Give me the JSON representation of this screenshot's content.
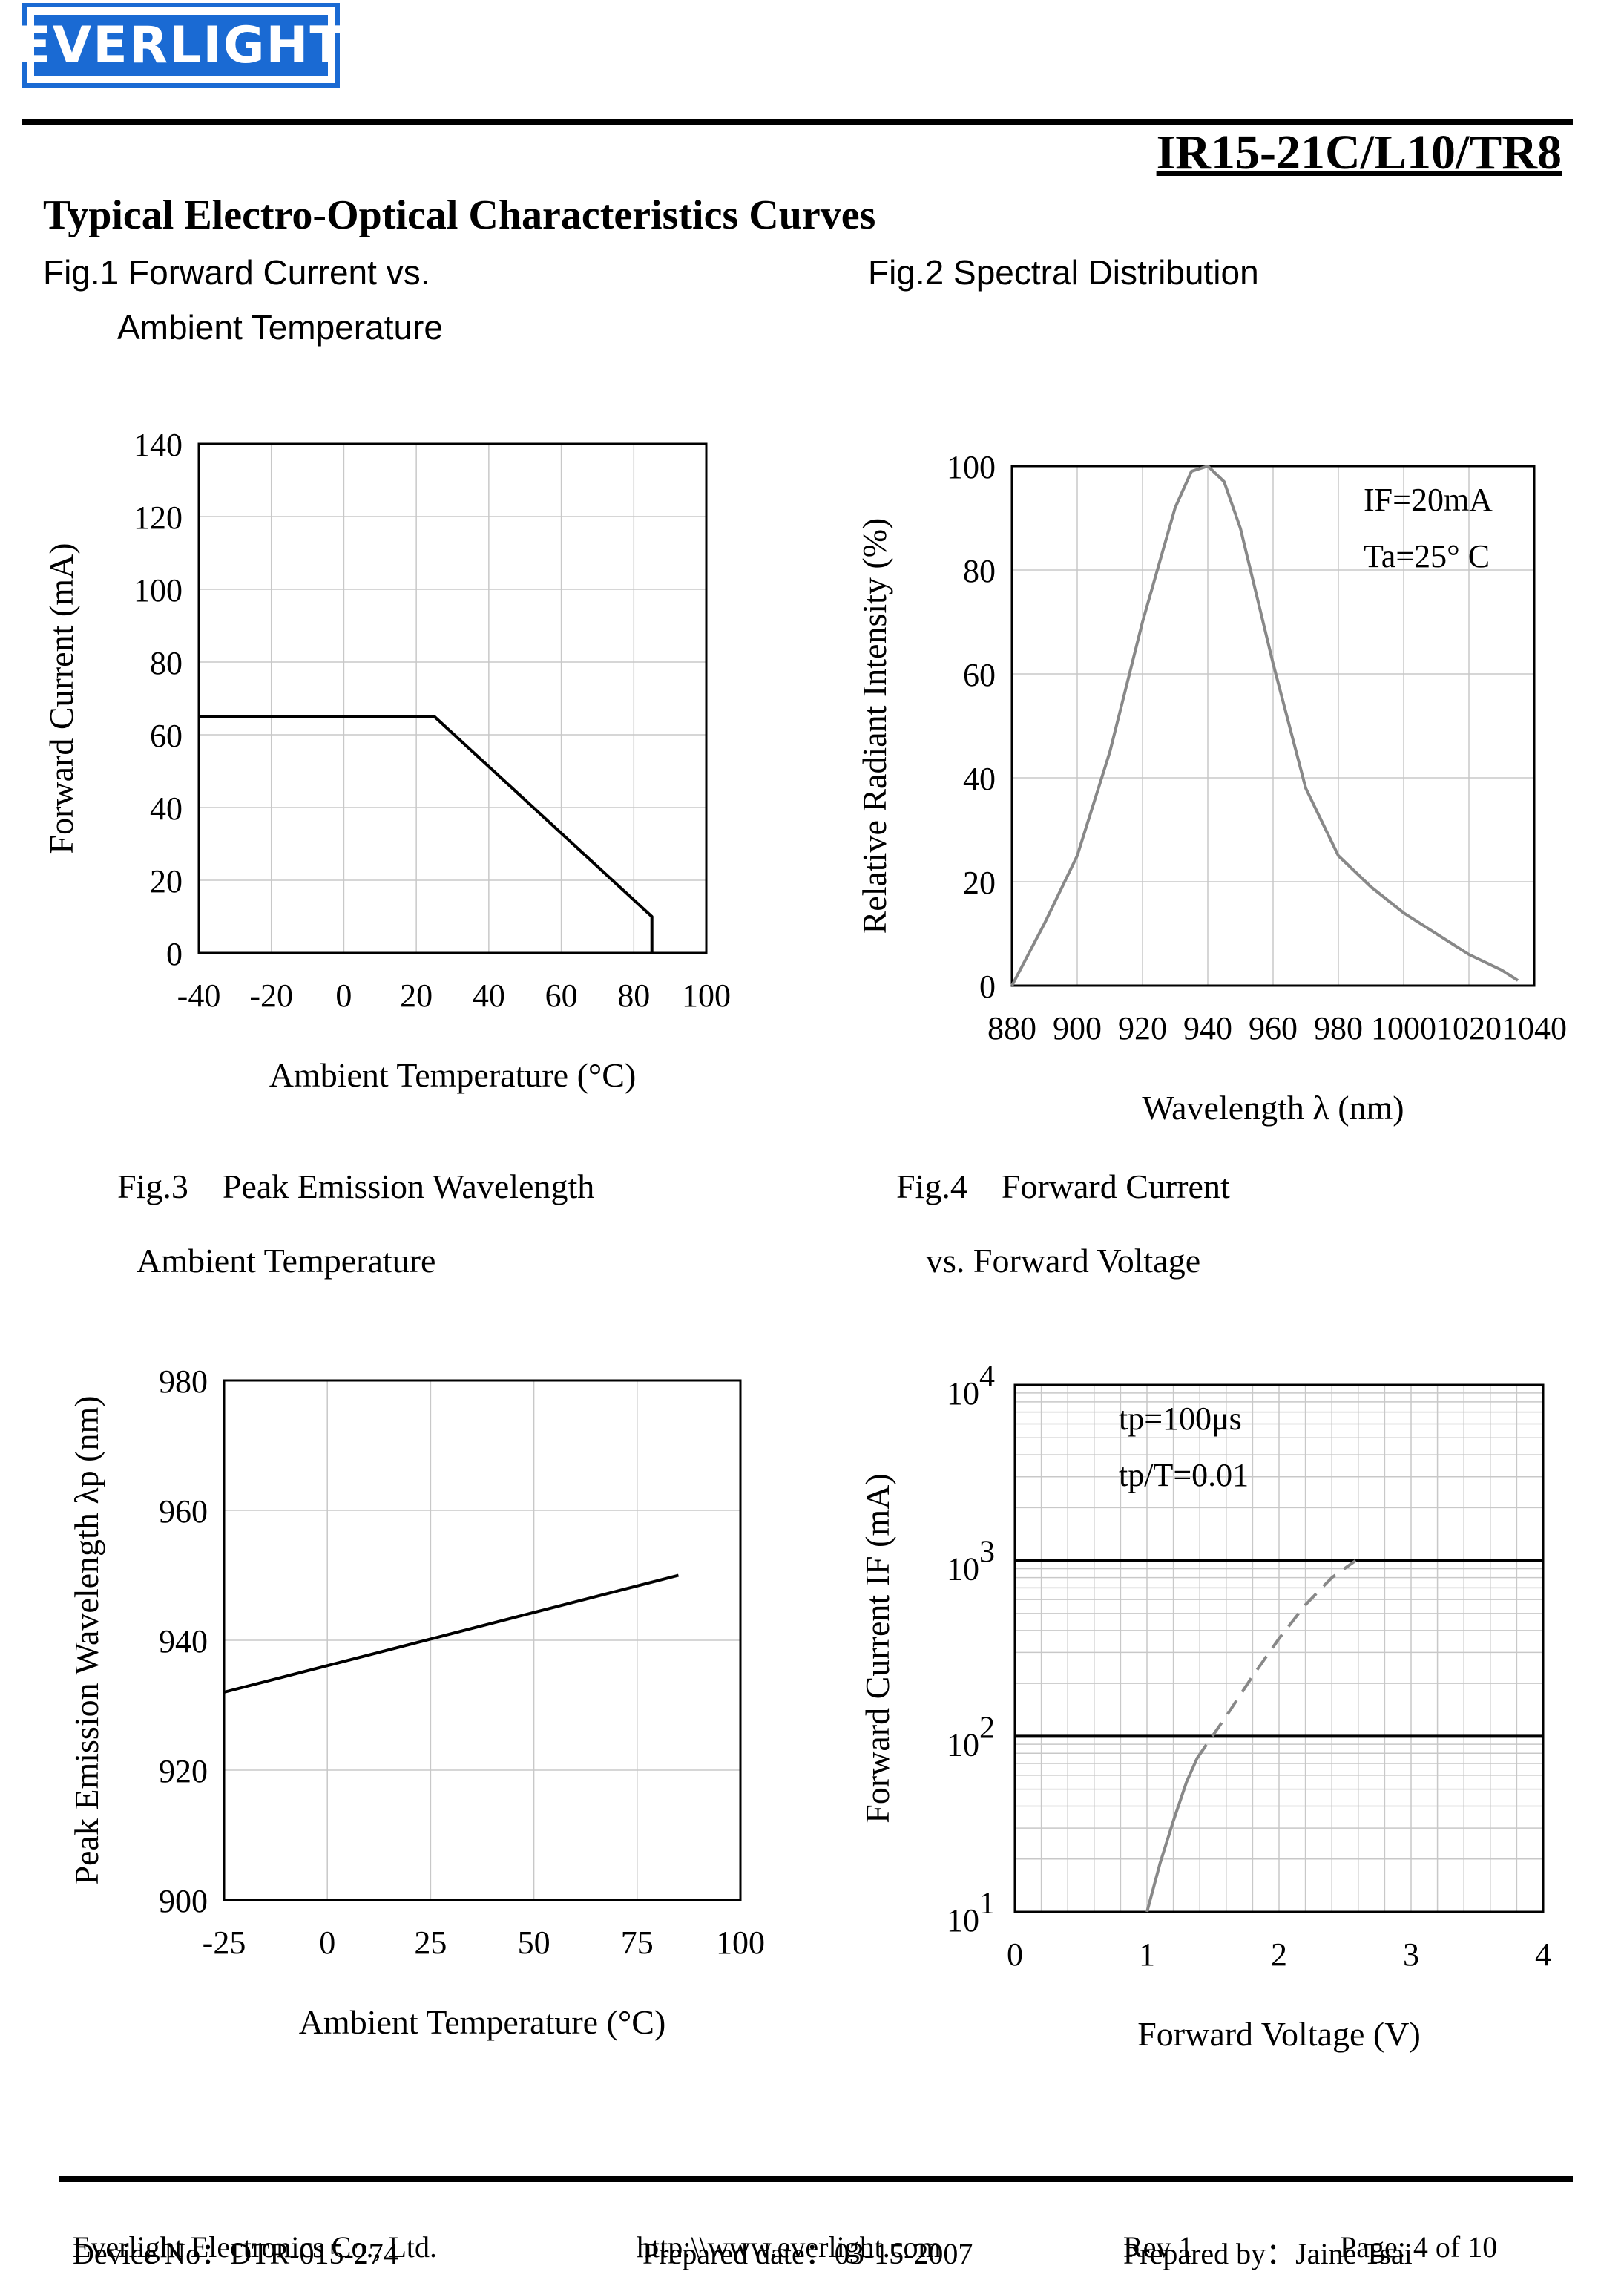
{
  "header": {
    "logo_text": "EVERLIGHT",
    "part_number": "IR15-21C/L10/TR8",
    "brand_color": "#1a6ad3"
  },
  "section_title": "Typical Electro-Optical Characteristics Curves",
  "figures": {
    "fig1": {
      "line1": "Fig.1 Forward Current vs.",
      "line2": "Ambient Temperature"
    },
    "fig2": {
      "line1": "Fig.2 Spectral Distribution"
    },
    "fig3": {
      "line1": "Fig.3    Peak Emission Wavelength",
      "line2": "Ambient Temperature"
    },
    "fig4": {
      "line1": "Fig.4    Forward Current",
      "line2": "vs. Forward Voltage"
    }
  },
  "chart_data": [
    {
      "type": "line",
      "id": "fig1",
      "xlabel": "Ambient Temperature (°C)",
      "ylabel": "Forward Current (mA)",
      "xlim": [
        -40,
        100
      ],
      "ylim": [
        0,
        140
      ],
      "x_ticks": [
        "-40",
        "-20",
        "0",
        "20",
        "40",
        "60",
        "80",
        "100"
      ],
      "y_ticks": [
        "0",
        "20",
        "40",
        "60",
        "80",
        "100",
        "120",
        "140"
      ],
      "grid": true,
      "series": [
        {
          "x": [
            -40,
            25,
            85,
            85
          ],
          "y": [
            65,
            65,
            10,
            0
          ]
        }
      ]
    },
    {
      "type": "line",
      "id": "fig2",
      "xlabel": "Wavelength λ (nm)",
      "ylabel": "Relative Radiant Intensity (%)",
      "annotation": [
        "IF=20mA",
        "Ta=25° C"
      ],
      "xlim": [
        880,
        1040
      ],
      "ylim": [
        0,
        100
      ],
      "x_ticks": [
        "880",
        "900",
        "920",
        "940",
        "960",
        "980",
        "1000",
        "1020",
        "1040"
      ],
      "y_ticks": [
        "0",
        "20",
        "40",
        "60",
        "80",
        "100"
      ],
      "grid": true,
      "series": [
        {
          "x": [
            880,
            890,
            900,
            910,
            920,
            930,
            935,
            940,
            945,
            950,
            960,
            970,
            980,
            990,
            1000,
            1010,
            1020,
            1030,
            1035
          ],
          "y": [
            0,
            12,
            25,
            45,
            70,
            92,
            99,
            100,
            97,
            88,
            62,
            38,
            25,
            19,
            14,
            10,
            6,
            3,
            1
          ]
        }
      ]
    },
    {
      "type": "line",
      "id": "fig3",
      "xlabel": "Ambient Temperature (°C)",
      "ylabel": "Peak Emission Wavelength λp (nm)",
      "xlim": [
        -25,
        100
      ],
      "ylim": [
        900,
        980
      ],
      "x_ticks": [
        "-25",
        "0",
        "25",
        "50",
        "75",
        "100"
      ],
      "y_ticks": [
        "900",
        "920",
        "940",
        "960",
        "980"
      ],
      "grid": true,
      "series": [
        {
          "x": [
            -25,
            85
          ],
          "y": [
            932,
            950
          ]
        }
      ]
    },
    {
      "type": "line",
      "id": "fig4",
      "xlabel": "Forward Voltage (V)",
      "ylabel": "Forward Current IF (mA)",
      "annotation": [
        "tp=100μs",
        "tp/T=0.01"
      ],
      "xlim": [
        0,
        4
      ],
      "ylim": [
        10,
        10000
      ],
      "log_y": true,
      "x_ticks": [
        "0",
        "1",
        "2",
        "3",
        "4"
      ],
      "y_ticks_base": [
        "10",
        "10",
        "10",
        "10"
      ],
      "y_ticks_exp": [
        "1",
        "2",
        "3",
        "4"
      ],
      "grid": true,
      "series": [
        {
          "x": [
            1.0,
            1.1,
            1.2,
            1.3,
            1.38
          ],
          "y": [
            10,
            19,
            33,
            55,
            75
          ],
          "style": "solid"
        },
        {
          "x": [
            1.38,
            1.6,
            1.8,
            2.0,
            2.2,
            2.4,
            2.58
          ],
          "y": [
            75,
            130,
            220,
            360,
            560,
            800,
            1000
          ],
          "style": "dashed"
        }
      ]
    }
  ],
  "footer": {
    "company": "Everlight Electronics Co., Ltd.",
    "url": "http:\\\\www.everlight.com",
    "rev": "Rev 1",
    "page": "Page: 4 of 10",
    "device": "Device No：DTR-015-274",
    "prepared_date": "Prepared date：03-15-2007",
    "prepared_by": "Prepared by：Jaine Tsai"
  }
}
